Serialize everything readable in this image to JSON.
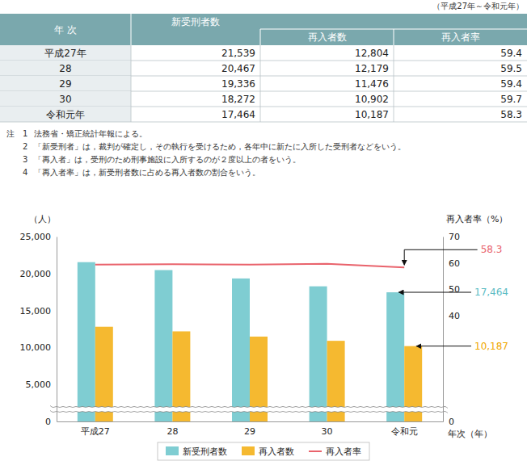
{
  "caption": "（平成27年～令和元年）",
  "table": {
    "header": [
      "年 次",
      "新受刑者数",
      "再入者数",
      "再入者率"
    ],
    "rows": [
      [
        "平成27年",
        "21,539",
        "12,804",
        "59.4"
      ],
      [
        "28",
        "20,467",
        "12,179",
        "59.5"
      ],
      [
        "29",
        "19,336",
        "11,476",
        "59.4"
      ],
      [
        "30",
        "18,272",
        "10,902",
        "59.7"
      ],
      [
        "令和元年",
        "17,464",
        "10,187",
        "58.3"
      ]
    ]
  },
  "notes": {
    "label": "注",
    "items": [
      {
        "num": "1",
        "text": "法務省・矯正統計年報による。"
      },
      {
        "num": "2",
        "text": "「新受刑者」は，裁判が確定し，その執行を受けるため，各年中に新たに入所した受刑者などをいう。"
      },
      {
        "num": "3",
        "text": "「再入者」は，受刑のため刑事施設に入所するのが２度以上の者をいう。"
      },
      {
        "num": "4",
        "text": "「再入者率」は，新受刑者数に占める再入者数の割合をいう。"
      }
    ]
  },
  "chart_data": {
    "type": "bar",
    "categories": [
      "平成27",
      "28",
      "29",
      "30",
      "令和元"
    ],
    "series": [
      {
        "name": "新受刑者数",
        "type": "bar",
        "color": "#7fcdd2",
        "values": [
          21539,
          20467,
          19336,
          18272,
          17464
        ]
      },
      {
        "name": "再入者数",
        "type": "bar",
        "color": "#f5b930",
        "values": [
          12804,
          12179,
          11476,
          10902,
          10187
        ]
      },
      {
        "name": "再入者率",
        "type": "line",
        "color": "#e9636c",
        "axis": "y2",
        "values": [
          59.4,
          59.5,
          59.4,
          59.7,
          58.3
        ]
      }
    ],
    "ylabel": "（人）",
    "y2label": "再入者率（%）",
    "xlabel": "年次（年）",
    "ylim": [
      0,
      25000
    ],
    "yticks": [
      0,
      {
        "value": 5000,
        "label": "5,000"
      },
      {
        "value": 10000,
        "label": "10,000"
      },
      {
        "value": 15000,
        "label": "15,000"
      },
      {
        "value": 20000,
        "label": "20,000"
      },
      {
        "value": 25000,
        "label": "25,000"
      }
    ],
    "y2lim": [
      0,
      70
    ],
    "y2ticks": [
      0,
      40,
      50,
      60,
      70
    ],
    "legend": "bottom",
    "annotations": [
      {
        "text": "58.3",
        "x": "令和元",
        "y": 58.3,
        "axis": "y2",
        "color": "#e9636c"
      },
      {
        "text": "17,464",
        "x": "令和元",
        "y": 17464,
        "color": "#5bbcc4"
      },
      {
        "text": "10,187",
        "x": "令和元",
        "y": 10187,
        "color": "#f0a800"
      }
    ]
  }
}
